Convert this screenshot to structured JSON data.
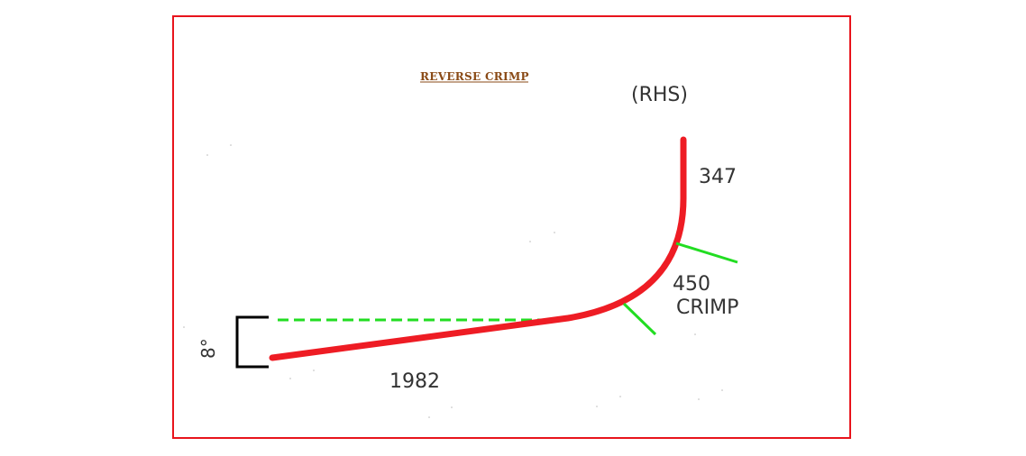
{
  "diagram": {
    "title": "REVERSE CRIMP",
    "side_label": "(RHS)",
    "vertical_length": "347",
    "crimp_value": "450",
    "crimp_label": "CRIMP",
    "base_length": "1982",
    "angle_label": "8°",
    "colors": {
      "frame": "#e8141c",
      "bar": "#ee1c24",
      "crimp_marks": "#22dd22",
      "reference_line": "#22dd22",
      "bracket": "#000000",
      "title": "#8a4a16",
      "text": "#333333"
    }
  }
}
